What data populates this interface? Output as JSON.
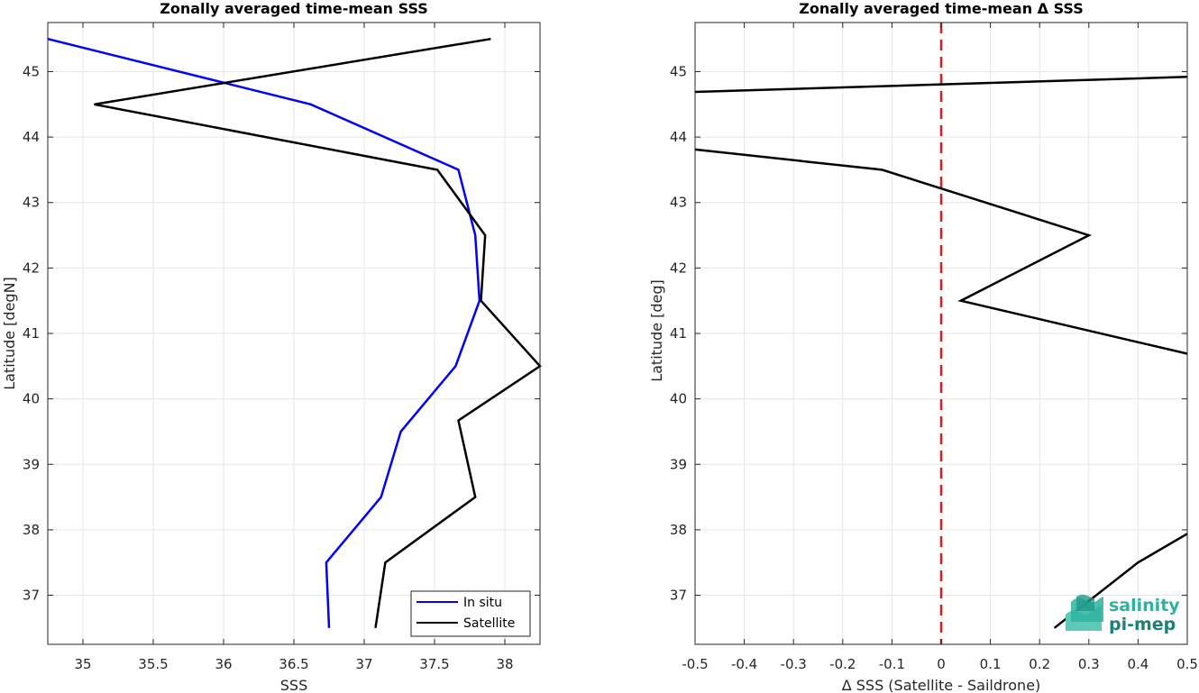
{
  "chart_data": [
    {
      "type": "line",
      "title": "Zonally averaged time-mean SSS",
      "xlabel": "SSS",
      "ylabel": "Latitude [degN]",
      "xlim": [
        34.75,
        38.25
      ],
      "ylim": [
        36.25,
        45.75
      ],
      "x_ticks": [
        "35",
        "35.5",
        "36",
        "36.5",
        "37",
        "37.5",
        "38"
      ],
      "y_ticks": [
        "37",
        "38",
        "39",
        "40",
        "41",
        "42",
        "43",
        "44",
        "45"
      ],
      "grid": true,
      "legend_position": "bottom-right",
      "series": [
        {
          "name": "In situ",
          "color": "#0000ff",
          "points": [
            [
              34.75,
              45.5
            ],
            [
              36.62,
              44.5
            ],
            [
              37.67,
              43.5
            ],
            [
              37.79,
              42.5
            ],
            [
              37.82,
              41.5
            ],
            [
              37.65,
              40.5
            ],
            [
              37.26,
              39.5
            ],
            [
              37.12,
              38.5
            ],
            [
              36.73,
              37.5
            ],
            [
              36.75,
              36.5
            ]
          ]
        },
        {
          "name": "Satellite",
          "color": "#000000",
          "points": [
            [
              37.9,
              45.5
            ],
            [
              35.08,
              44.5
            ],
            [
              37.52,
              43.5
            ],
            [
              37.86,
              42.5
            ],
            [
              37.83,
              41.5
            ],
            [
              38.25,
              40.5
            ],
            [
              37.67,
              39.67
            ],
            [
              37.79,
              38.5
            ],
            [
              37.15,
              37.5
            ],
            [
              37.08,
              36.5
            ]
          ]
        }
      ]
    },
    {
      "type": "line",
      "title": "Zonally averaged time-mean Δ SSS",
      "xlabel": "Δ SSS (Satellite - Saildrone)",
      "ylabel": "Latitude [deg]",
      "xlim": [
        -0.5,
        0.5
      ],
      "ylim": [
        36.25,
        45.75
      ],
      "x_ticks": [
        "-0.5",
        "-0.4",
        "-0.3",
        "-0.2",
        "-0.1",
        "0",
        "0.1",
        "0.2",
        "0.3",
        "0.4",
        "0.5"
      ],
      "y_ticks": [
        "37",
        "38",
        "39",
        "40",
        "41",
        "42",
        "43",
        "44",
        "45"
      ],
      "grid": true,
      "zero_line": {
        "x": 0,
        "color": "#e31a1c",
        "style": "dashed"
      },
      "series": [
        {
          "color": "#000000",
          "segments": [
            [
              [
                -0.5,
                44.69
              ],
              [
                0.5,
                44.92
              ]
            ],
            [
              [
                -0.5,
                43.81
              ],
              [
                -0.12,
                43.5
              ],
              [
                0.3,
                42.5
              ],
              [
                0.04,
                41.5
              ],
              [
                0.5,
                40.69
              ]
            ],
            [
              [
                0.23,
                36.5
              ],
              [
                0.4,
                37.5
              ],
              [
                0.5,
                37.94
              ]
            ]
          ]
        }
      ]
    }
  ],
  "logo": {
    "line1": "salinity",
    "line2": "pi-mep"
  }
}
